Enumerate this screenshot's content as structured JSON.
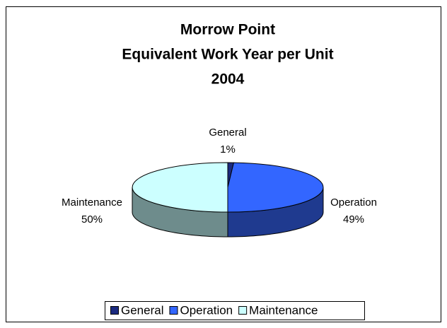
{
  "chart_data": {
    "type": "pie",
    "title": [
      "Morrow Point",
      "Equivalent Work Year per Unit",
      "2004"
    ],
    "categories": [
      "General",
      "Operation",
      "Maintenance"
    ],
    "values": [
      1,
      49,
      50
    ],
    "value_labels": [
      "1%",
      "49%",
      "50%"
    ],
    "colors": [
      "#1b2a80",
      "#3366ff",
      "#ccffff"
    ],
    "side_colors": [
      "#101a55",
      "#1f3a8f",
      "#6e8c8c"
    ],
    "legend": "bottom"
  }
}
